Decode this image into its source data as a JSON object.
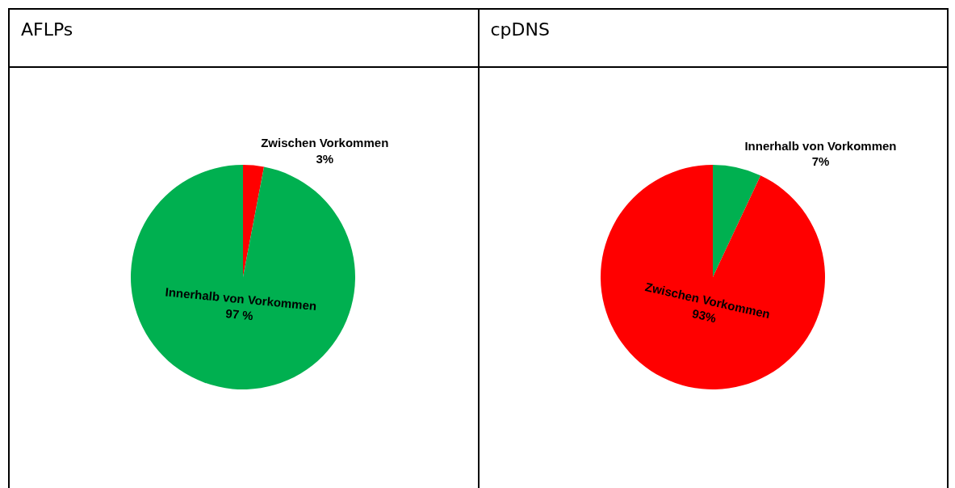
{
  "chart_data": [
    {
      "type": "pie",
      "title": "AFLPs",
      "categories": [
        "Zwischen Vorkommen",
        "Innerhalb von Vorkommen"
      ],
      "values": [
        3,
        97
      ],
      "value_labels": [
        "3%",
        "97 %"
      ],
      "colors": [
        "#ff0000",
        "#00b050"
      ],
      "legend": false
    },
    {
      "type": "pie",
      "title": "cpDNS",
      "categories": [
        "Innerhalb von Vorkommen",
        "Zwischen Vorkommen"
      ],
      "values": [
        7,
        93
      ],
      "value_labels": [
        "7%",
        "93%"
      ],
      "colors": [
        "#00b050",
        "#ff0000"
      ],
      "legend": false
    }
  ]
}
